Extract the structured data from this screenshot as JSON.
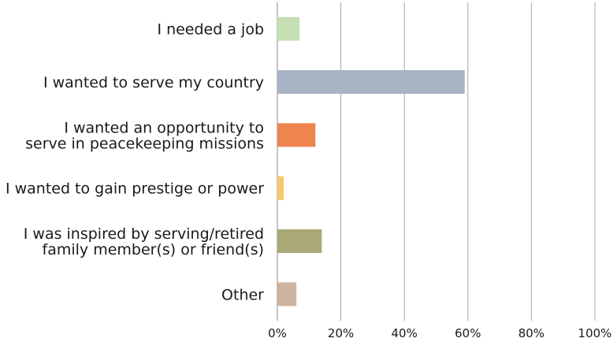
{
  "chart_data": {
    "type": "bar",
    "orientation": "horizontal",
    "title": "",
    "xlabel": "",
    "ylabel": "",
    "categories": [
      [
        "I needed a job"
      ],
      [
        "I wanted to serve my country"
      ],
      [
        "I wanted an opportunity to",
        "serve in peacekeeping missions"
      ],
      [
        "I wanted to gain prestige or power"
      ],
      [
        "I was inspired by serving/retired",
        "family member(s) or friend(s)"
      ],
      [
        "Other"
      ]
    ],
    "values": [
      7,
      59,
      12,
      2,
      14,
      6
    ],
    "colors": [
      "#c5e0b4",
      "#a8b3c6",
      "#ee8450",
      "#f5c96a",
      "#a9a977",
      "#cdb4a0"
    ],
    "xlim": [
      0,
      100
    ],
    "xticks": [
      "0%",
      "20%",
      "40%",
      "60%",
      "80%",
      "100%"
    ],
    "grid": "vertical",
    "legend": "none"
  }
}
